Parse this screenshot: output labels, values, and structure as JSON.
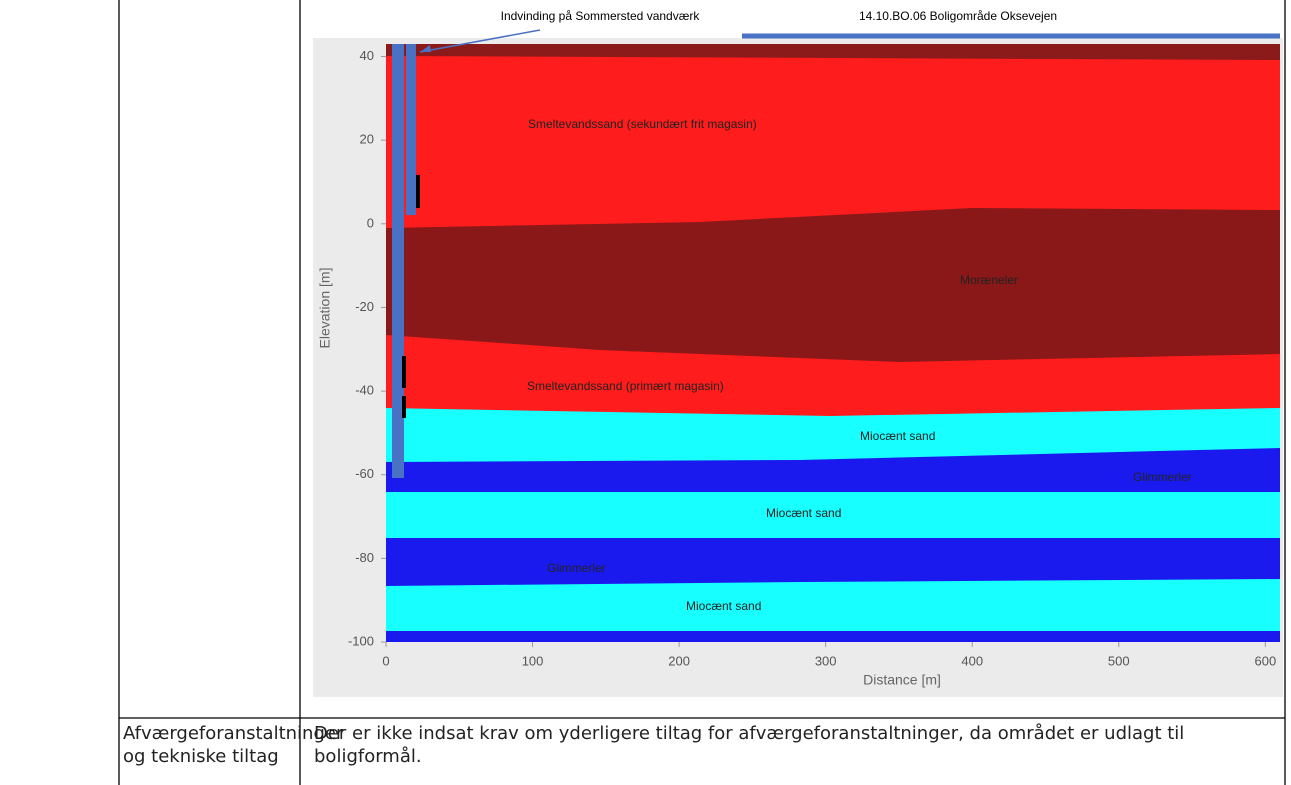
{
  "header_annotations": [
    "Indvinding på Sommersted vandværk",
    "14.10.BO.06 Boligområde Oksevejen"
  ],
  "chart_data": {
    "type": "cross-section",
    "xlabel": "Distance [m]",
    "ylabel": "Elevation [m]",
    "xlim": [
      0,
      610
    ],
    "ylim": [
      -100,
      43
    ],
    "xticks": [
      0,
      100,
      200,
      300,
      400,
      500,
      600
    ],
    "yticks": [
      -100,
      -80,
      -60,
      -40,
      -20,
      0,
      20,
      40
    ],
    "layer_labels": [
      "Smeltevandssand (sekundært frit magasin)",
      "Moræneler",
      "Smeltevandssand (primært magasin)",
      "Miocænt sand",
      "Glimmerler",
      "Miocænt sand",
      "Glimmerler",
      "Miocænt sand"
    ]
  },
  "table": {
    "rows": [
      [
        "Afværgeforanstaltninger og tekniske tiltag",
        "Der er ikke indsat krav om yderligere tiltag for afværgeforanstaltninger, da området er udlagt til boligformål."
      ]
    ]
  }
}
